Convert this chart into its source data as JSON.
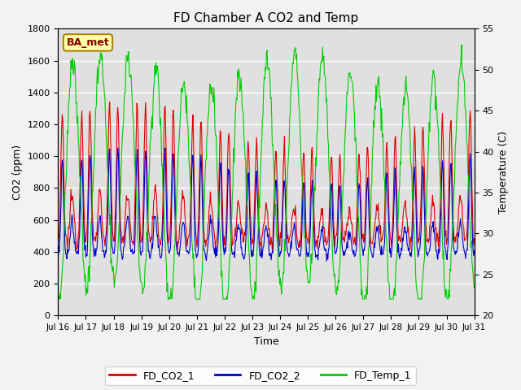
{
  "title": "FD Chamber A CO2 and Temp",
  "xlabel": "Time",
  "ylabel_left": "CO2 (ppm)",
  "ylabel_right": "Temperature (C)",
  "ylim_left": [
    0,
    1800
  ],
  "ylim_right": [
    20,
    55
  ],
  "yticks_left": [
    0,
    200,
    400,
    600,
    800,
    1000,
    1200,
    1400,
    1600,
    1800
  ],
  "yticks_right": [
    20,
    25,
    30,
    35,
    40,
    45,
    50,
    55
  ],
  "xtick_labels": [
    "Jul 16",
    "Jul 17",
    "Jul 18",
    "Jul 19",
    "Jul 20",
    "Jul 21",
    "Jul 22",
    "Jul 23",
    "Jul 24",
    "Jul 25",
    "Jul 26",
    "Jul 27",
    "Jul 28",
    "Jul 29",
    "Jul 30",
    "Jul 31"
  ],
  "color_co2_1": "#dd0000",
  "color_co2_2": "#0000cc",
  "color_temp": "#00cc00",
  "bg_color": "#e0e0e0",
  "fig_color": "#f2f2f2",
  "legend_label_1": "FD_CO2_1",
  "legend_label_2": "FD_CO2_2",
  "legend_label_3": "FD_Temp_1",
  "annotation_text": "BA_met",
  "annotation_bg": "#ffffaa",
  "annotation_border": "#aa8800",
  "grid_color": "#ffffff",
  "num_days": 15,
  "seed": 12345
}
